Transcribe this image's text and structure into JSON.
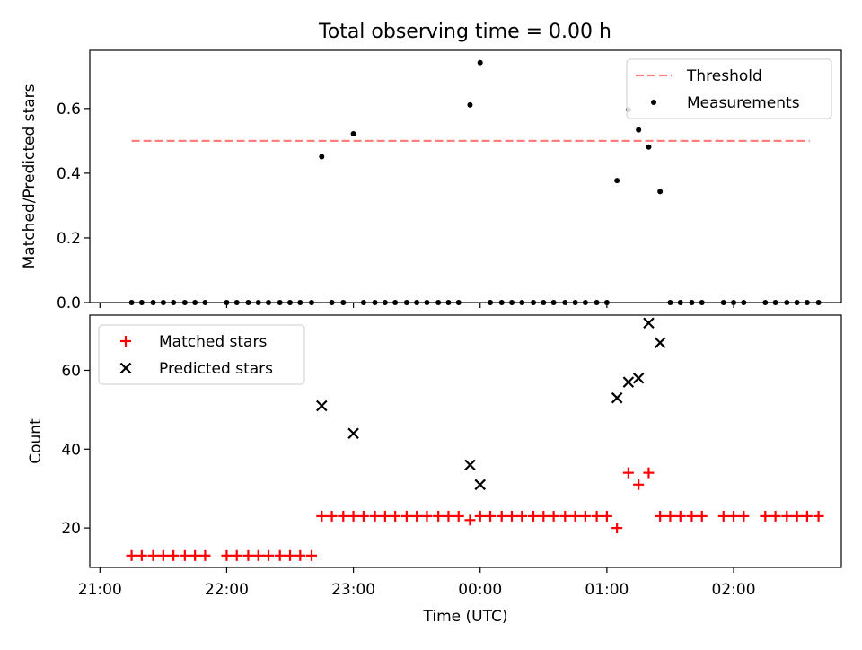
{
  "figure": {
    "title": "Total observing time = 0.00 h"
  },
  "chart_data": [
    {
      "type": "scatter",
      "panel": "top",
      "xlabel": "",
      "ylabel": "Matched/Predicted stars",
      "xlim": [
        -0.08,
        5.85
      ],
      "ylim": [
        0.0,
        0.78
      ],
      "yticks": [
        0.0,
        0.2,
        0.4,
        0.6
      ],
      "ytick_labels": [
        "0.0",
        "0.2",
        "0.4",
        "0.6"
      ],
      "grid": false,
      "legend_position": "top-right",
      "threshold": {
        "name": "Threshold",
        "value": 0.5,
        "x_range": [
          0.25,
          5.6
        ],
        "color": "#ff7f7f",
        "style": "dashed"
      },
      "series": [
        {
          "name": "Measurements",
          "color": "#000000",
          "x": [
            0.25,
            0.33,
            0.42,
            0.5,
            0.58,
            0.67,
            0.75,
            0.83,
            1.0,
            1.08,
            1.17,
            1.25,
            1.33,
            1.42,
            1.5,
            1.58,
            1.67,
            1.75,
            1.83,
            1.92,
            2.0,
            2.08,
            2.17,
            2.25,
            2.33,
            2.42,
            2.5,
            2.58,
            2.67,
            2.75,
            2.83,
            2.92,
            3.0,
            3.08,
            3.17,
            3.25,
            3.33,
            3.42,
            3.5,
            3.58,
            3.67,
            3.75,
            3.83,
            3.92,
            4.0,
            4.08,
            4.17,
            4.25,
            4.33,
            4.42,
            4.5,
            4.58,
            4.67,
            4.75,
            4.92,
            5.0,
            5.08,
            5.25,
            5.33,
            5.42,
            5.5,
            5.58,
            5.67
          ],
          "y": [
            0,
            0,
            0,
            0,
            0,
            0,
            0,
            0,
            0,
            0,
            0,
            0,
            0,
            0,
            0,
            0,
            0,
            0.451,
            0,
            0,
            0.522,
            0,
            0,
            0,
            0,
            0,
            0,
            0,
            0,
            0,
            0,
            0.611,
            0.742,
            0,
            0,
            0,
            0,
            0,
            0,
            0,
            0,
            0,
            0,
            0,
            0,
            0.377,
            0.596,
            0.534,
            0.481,
            0.343,
            0,
            0,
            0,
            0,
            0,
            0,
            0,
            0,
            0,
            0,
            0,
            0,
            0
          ]
        }
      ]
    },
    {
      "type": "scatter",
      "panel": "bottom",
      "xlabel": "Time (UTC)",
      "ylabel": "Count",
      "xlim": [
        -0.08,
        5.85
      ],
      "ylim": [
        10,
        74
      ],
      "yticks": [
        20,
        40,
        60
      ],
      "ytick_labels": [
        "20",
        "40",
        "60"
      ],
      "xticks": [
        0,
        1,
        2,
        3,
        4,
        5
      ],
      "xtick_labels": [
        "21:00",
        "22:00",
        "23:00",
        "00:00",
        "01:00",
        "02:00"
      ],
      "grid": false,
      "legend_position": "top-left",
      "series": [
        {
          "name": "Matched stars",
          "marker": "plus",
          "color": "#ff0000",
          "x": [
            0.25,
            0.33,
            0.42,
            0.5,
            0.58,
            0.67,
            0.75,
            0.83,
            1.0,
            1.08,
            1.17,
            1.25,
            1.33,
            1.42,
            1.5,
            1.58,
            1.67,
            1.75,
            1.83,
            1.92,
            2.0,
            2.08,
            2.17,
            2.25,
            2.33,
            2.42,
            2.5,
            2.58,
            2.67,
            2.75,
            2.83,
            2.92,
            3.0,
            3.08,
            3.17,
            3.25,
            3.33,
            3.42,
            3.5,
            3.58,
            3.67,
            3.75,
            3.83,
            3.92,
            4.0,
            4.08,
            4.17,
            4.25,
            4.33,
            4.42,
            4.5,
            4.58,
            4.67,
            4.75,
            4.92,
            5.0,
            5.08,
            5.25,
            5.33,
            5.42,
            5.5,
            5.58,
            5.67
          ],
          "y": [
            13,
            13,
            13,
            13,
            13,
            13,
            13,
            13,
            13,
            13,
            13,
            13,
            13,
            13,
            13,
            13,
            13,
            23,
            23,
            23,
            23,
            23,
            23,
            23,
            23,
            23,
            23,
            23,
            23,
            23,
            23,
            22,
            23,
            23,
            23,
            23,
            23,
            23,
            23,
            23,
            23,
            23,
            23,
            23,
            23,
            20,
            34,
            31,
            34,
            23,
            23,
            23,
            23,
            23,
            23,
            23,
            23,
            23,
            23,
            23,
            23,
            23,
            23
          ]
        },
        {
          "name": "Predicted stars",
          "marker": "x",
          "color": "#000000",
          "x": [
            1.75,
            2.0,
            2.92,
            3.0,
            4.08,
            4.17,
            4.25,
            4.33,
            4.42
          ],
          "y": [
            51,
            44,
            36,
            31,
            53,
            57,
            58,
            72,
            67
          ]
        }
      ]
    }
  ]
}
